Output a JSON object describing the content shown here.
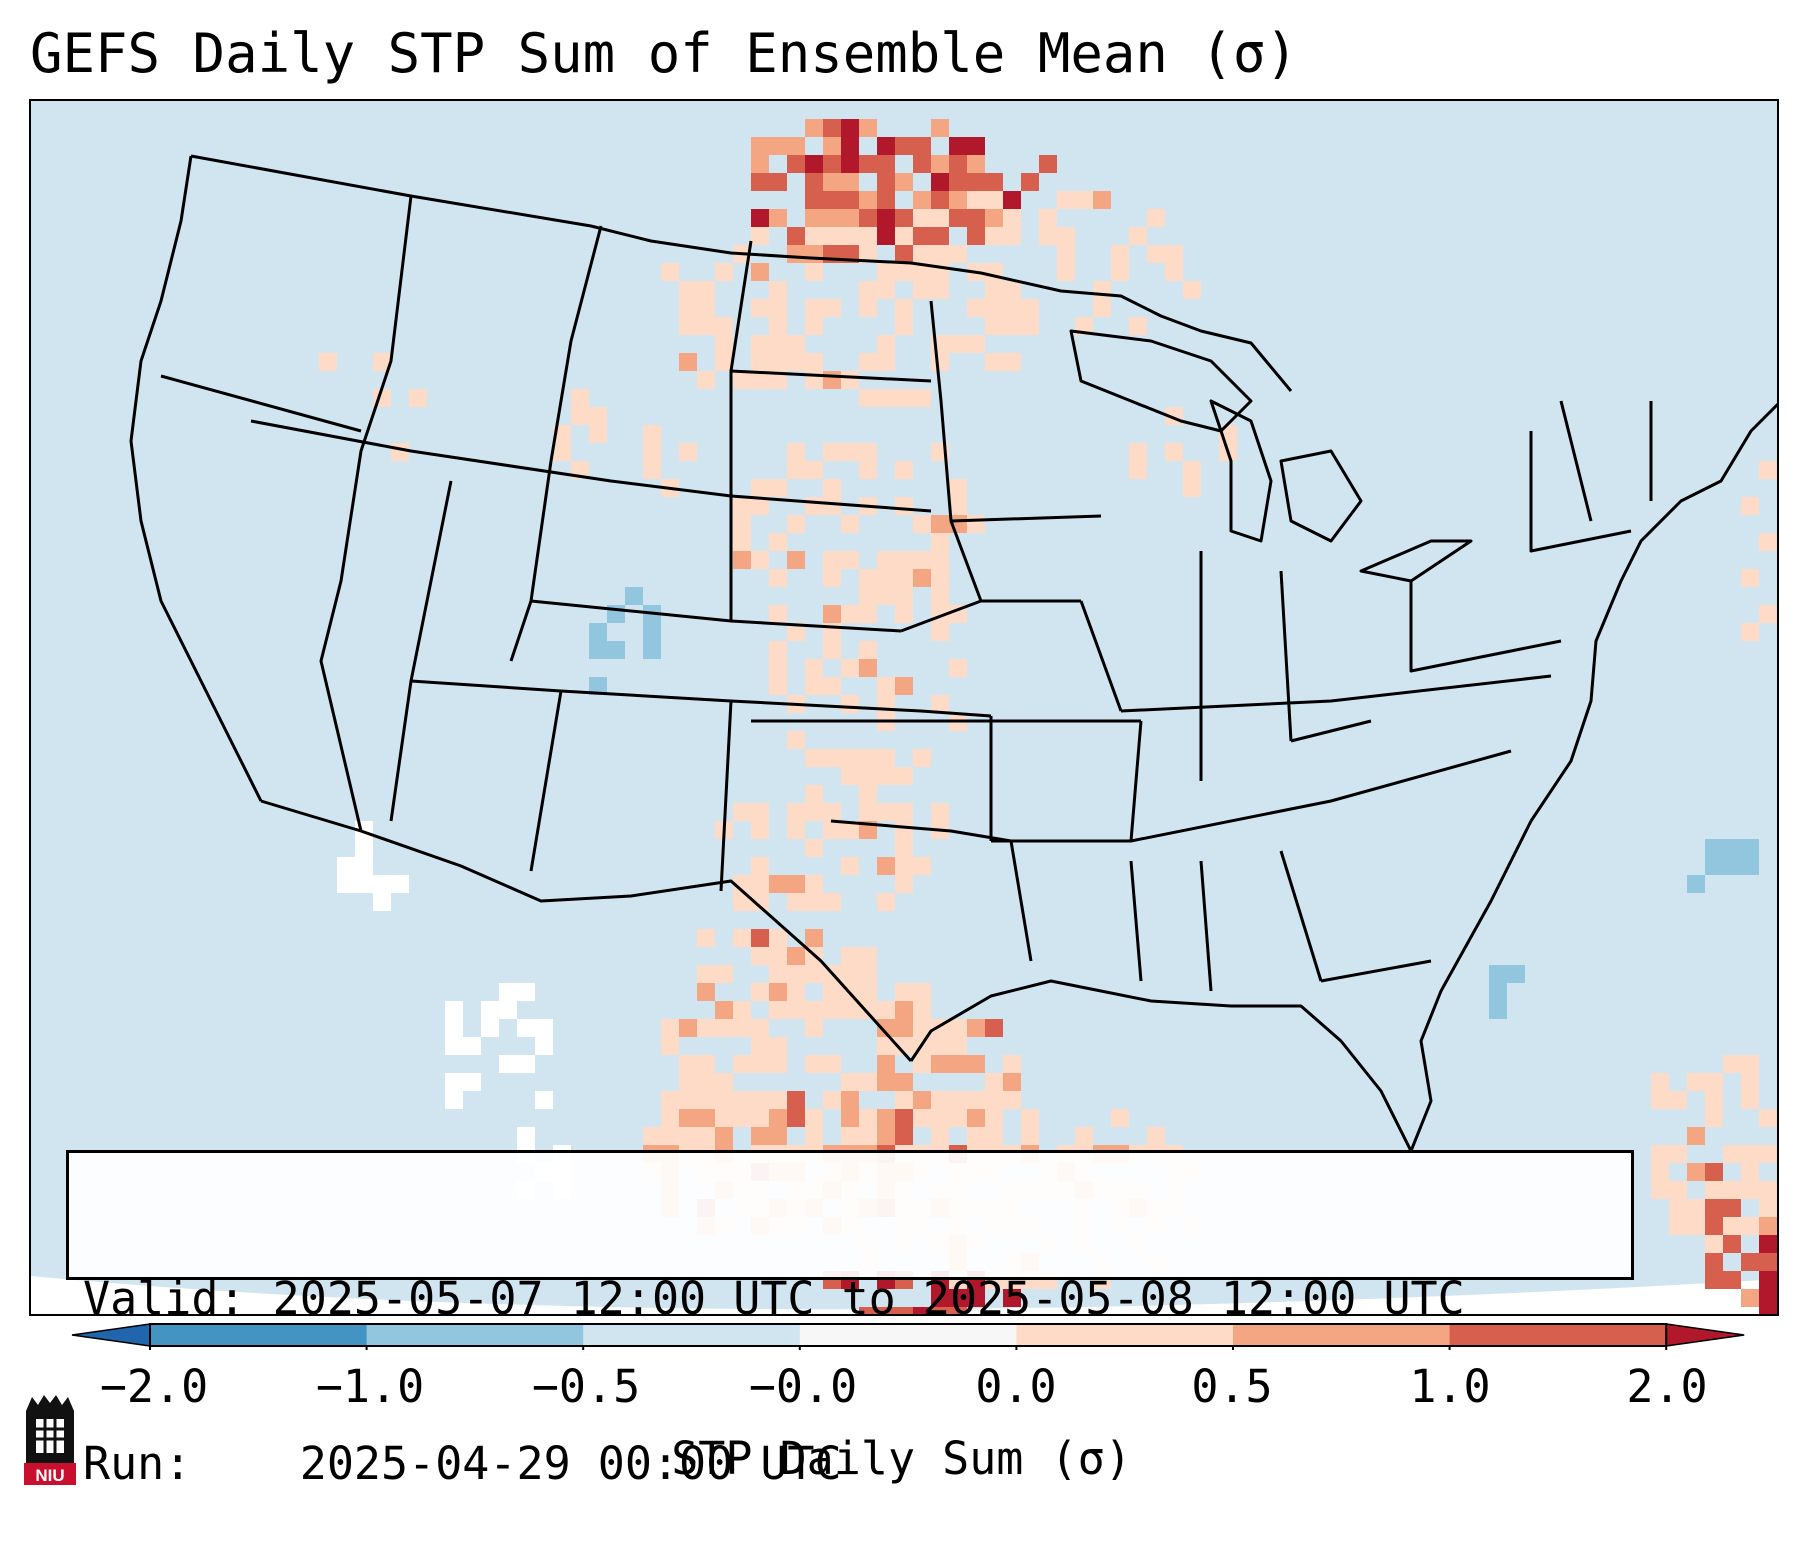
{
  "title": "GEFS Daily STP Sum of Ensemble Mean (σ)",
  "info": {
    "valid_label": "Valid:",
    "valid_value": "2025-05-07 12:00 UTC to 2025-05-08 12:00 UTC",
    "run_label": "Run:",
    "run_value": "2025-04-29 00:00 UTC"
  },
  "colorbar": {
    "label": "STP Daily Sum (σ)",
    "tick_labels": [
      "−2.0",
      "−1.0",
      "−0.5",
      "−0.0",
      "0.0",
      "0.5",
      "1.0",
      "2.0"
    ],
    "colors": [
      "#2166ac",
      "#4393c3",
      "#92c5de",
      "#d1e5f0",
      "#f7f7f7",
      "#fddbc7",
      "#f4a582",
      "#d6604d",
      "#b2182b"
    ],
    "extend": "both"
  },
  "map": {
    "region": "Continental United States",
    "background_color": "#d1e5f0",
    "boundary_color": "#000000"
  },
  "logo": {
    "text": "NIU"
  }
}
